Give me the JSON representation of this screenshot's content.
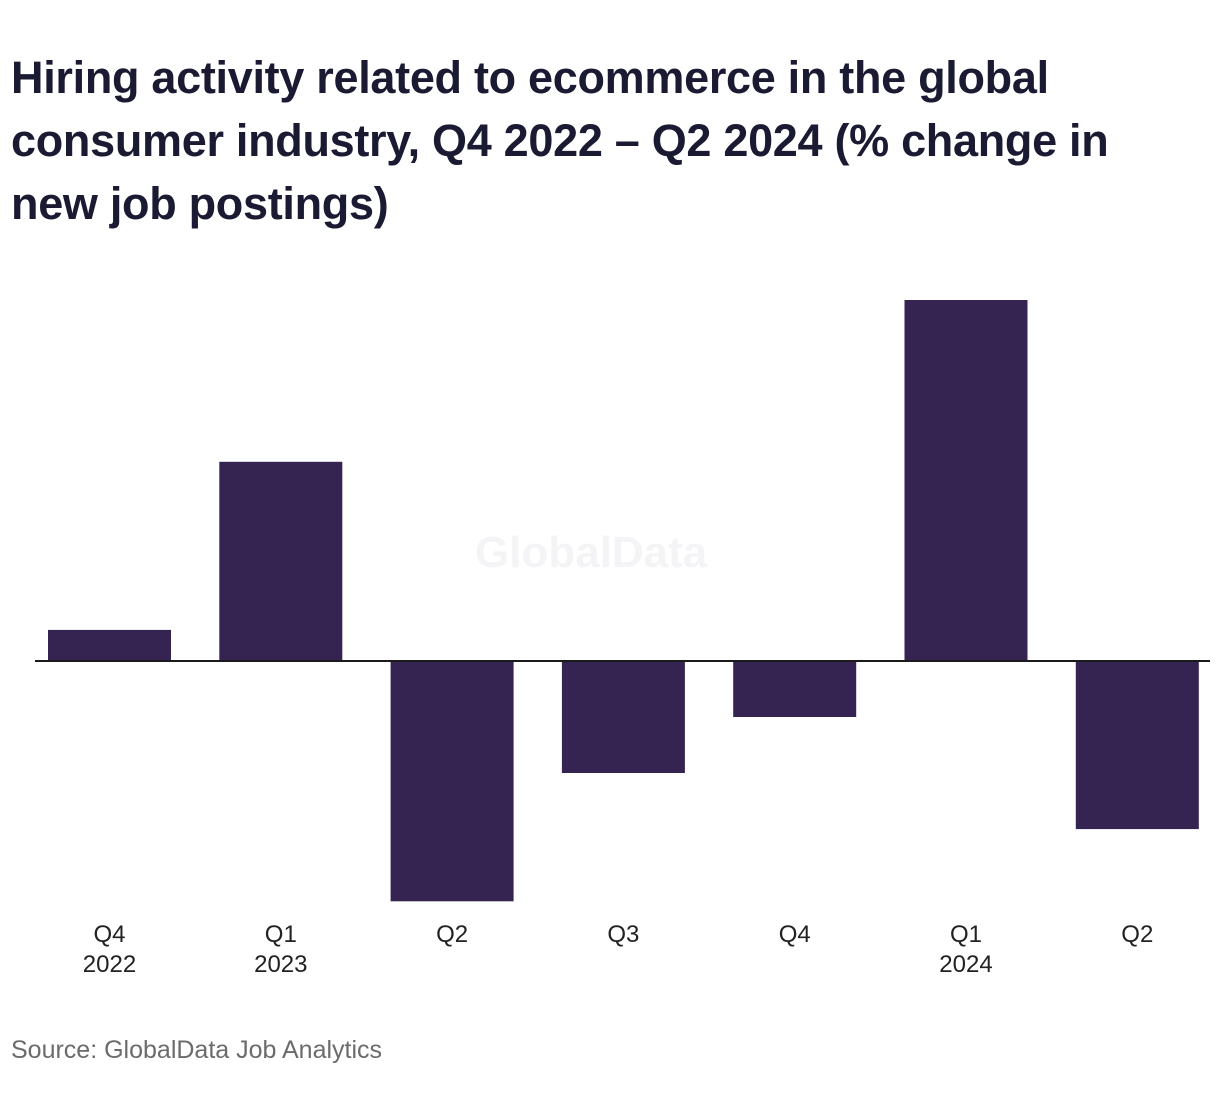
{
  "title": "Hiring activity related to ecommerce in the global consumer industry, Q4 2022 – Q2 2024 (% change in new job postings)",
  "source": "Source: GlobalData Job Analytics",
  "watermark": "GlobalData",
  "colors": {
    "bar": "#352451",
    "axis": "#1a1a1a",
    "title": "#1a1a33",
    "tick_label": "#222222",
    "source": "#6b6b6b"
  },
  "chart_data": {
    "type": "bar",
    "categories": [
      {
        "line1": "Q4",
        "line2": "2022"
      },
      {
        "line1": "Q1",
        "line2": "2023"
      },
      {
        "line1": "Q2",
        "line2": ""
      },
      {
        "line1": "Q3",
        "line2": ""
      },
      {
        "line1": "Q4",
        "line2": ""
      },
      {
        "line1": "Q1",
        "line2": "2024"
      },
      {
        "line1": "Q2",
        "line2": ""
      }
    ],
    "values": [
      2.5,
      16,
      -19.3,
      -9,
      -4.5,
      29,
      -13.5
    ],
    "ylim": [
      -20.5,
      31.5
    ],
    "grid": false,
    "legend": "none",
    "y_axis_labels": false
  }
}
